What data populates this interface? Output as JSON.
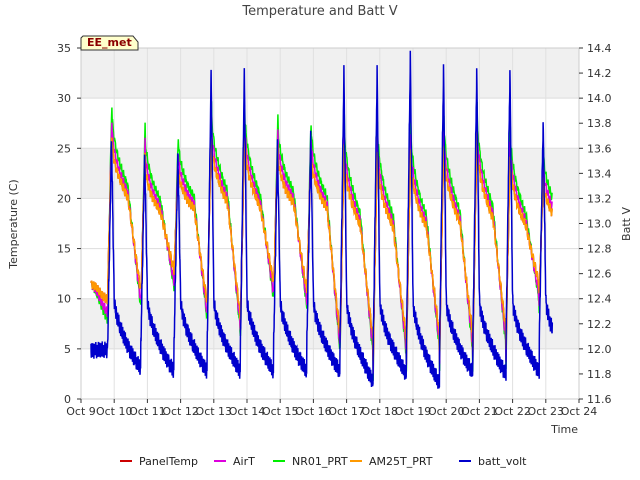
{
  "chart_data": {
    "type": "line",
    "title": "Temperature and Batt V",
    "badge": "EE_met",
    "xlabel": "Time",
    "ylabel_left": "Temperature (C)",
    "ylabel_right": "Batt V",
    "xlim": [
      9,
      24
    ],
    "ylim_left": [
      0,
      35
    ],
    "ylim_right": [
      11.6,
      14.4
    ],
    "x_ticks": [
      {
        "value": 9,
        "label": "Oct 9"
      },
      {
        "value": 10,
        "label": "Oct 10"
      },
      {
        "value": 11,
        "label": "Oct 11"
      },
      {
        "value": 12,
        "label": "Oct 12"
      },
      {
        "value": 13,
        "label": "Oct 13"
      },
      {
        "value": 14,
        "label": "Oct 14"
      },
      {
        "value": 15,
        "label": "Oct 15"
      },
      {
        "value": 16,
        "label": "Oct 16"
      },
      {
        "value": 17,
        "label": "Oct 17"
      },
      {
        "value": 18,
        "label": "Oct 18"
      },
      {
        "value": 19,
        "label": "Oct 19"
      },
      {
        "value": 20,
        "label": "Oct 20"
      },
      {
        "value": 21,
        "label": "Oct 21"
      },
      {
        "value": 22,
        "label": "Oct 22"
      },
      {
        "value": 23,
        "label": "Oct 23"
      },
      {
        "value": 24,
        "label": "Oct 24"
      }
    ],
    "y_ticks_left": [
      0,
      5,
      10,
      15,
      20,
      25,
      30,
      35
    ],
    "y_ticks_right": [
      "11.6",
      "11.8",
      "12.0",
      "12.2",
      "12.4",
      "12.6",
      "12.8",
      "13.0",
      "13.2",
      "13.4",
      "13.6",
      "13.8",
      "14.0",
      "14.2",
      "14.4"
    ],
    "daily_minima": [
      {
        "day": 9.8,
        "value": 9.8
      },
      {
        "day": 10.8,
        "value": 9.5
      },
      {
        "day": 11.8,
        "value": 11.8
      },
      {
        "day": 12.8,
        "value": 8.4
      },
      {
        "day": 13.8,
        "value": 6.8
      },
      {
        "day": 14.8,
        "value": 10.3
      },
      {
        "day": 15.8,
        "value": 9.6
      },
      {
        "day": 16.8,
        "value": 5.0
      },
      {
        "day": 17.8,
        "value": 4.3
      },
      {
        "day": 18.8,
        "value": 4.4
      },
      {
        "day": 19.8,
        "value": 4.9
      },
      {
        "day": 20.8,
        "value": 4.7
      },
      {
        "day": 21.8,
        "value": 5.2
      },
      {
        "day": 22.8,
        "value": 10.2
      }
    ],
    "daily_maxima": [
      {
        "day": 9.93,
        "value": 26.5
      },
      {
        "day": 10.93,
        "value": 24.0
      },
      {
        "day": 11.93,
        "value": 23.3
      },
      {
        "day": 12.93,
        "value": 26.5
      },
      {
        "day": 13.93,
        "value": 26.5
      },
      {
        "day": 14.93,
        "value": 25.0
      },
      {
        "day": 15.93,
        "value": 24.8
      },
      {
        "day": 16.93,
        "value": 25.0
      },
      {
        "day": 17.93,
        "value": 24.8
      },
      {
        "day": 18.93,
        "value": 24.8
      },
      {
        "day": 19.93,
        "value": 25.5
      },
      {
        "day": 20.93,
        "value": 26.2
      },
      {
        "day": 21.93,
        "value": 24.5
      },
      {
        "day": 22.93,
        "value": 22.0
      }
    ],
    "series": [
      {
        "name": "PanelTemp",
        "color": "#cc0000",
        "axis": "left",
        "start": 9.3,
        "end": 23.2,
        "peak_offset": 0,
        "min_offset": 0
      },
      {
        "name": "AirT",
        "color": "#dd00dd",
        "axis": "left",
        "start": 9.3,
        "end": 23.2,
        "peak_offset": 1.5,
        "min_offset": 1.3
      },
      {
        "name": "NR01_PRT",
        "color": "#00ee00",
        "axis": "left",
        "start": 9.3,
        "end": 23.2,
        "peak_offset": 3.0,
        "min_offset": 2.0
      },
      {
        "name": "AM25T_PRT",
        "color": "#ff9900",
        "axis": "left",
        "start": 9.3,
        "end": 23.2,
        "peak_offset": 0,
        "min_offset": 0
      },
      {
        "name": "batt_volt",
        "color": "#0000cc",
        "axis": "right",
        "start": 9.3,
        "end": 23.2,
        "daily_peaks": [
          13.67,
          13.55,
          13.55,
          14.2,
          14.2,
          13.62,
          13.68,
          14.2,
          14.2,
          14.32,
          14.22,
          14.2,
          14.2,
          13.8
        ],
        "daily_lows": [
          11.84,
          11.82,
          11.82,
          11.82,
          11.82,
          11.82,
          11.82,
          11.74,
          11.8,
          11.72,
          11.81,
          11.8,
          11.82,
          11.84
        ]
      }
    ],
    "legend": [
      "PanelTemp",
      "AirT",
      "NR01_PRT",
      "AM25T_PRT",
      "batt_volt"
    ],
    "legend_position": "bottom",
    "background_bands": true,
    "grid": true
  }
}
